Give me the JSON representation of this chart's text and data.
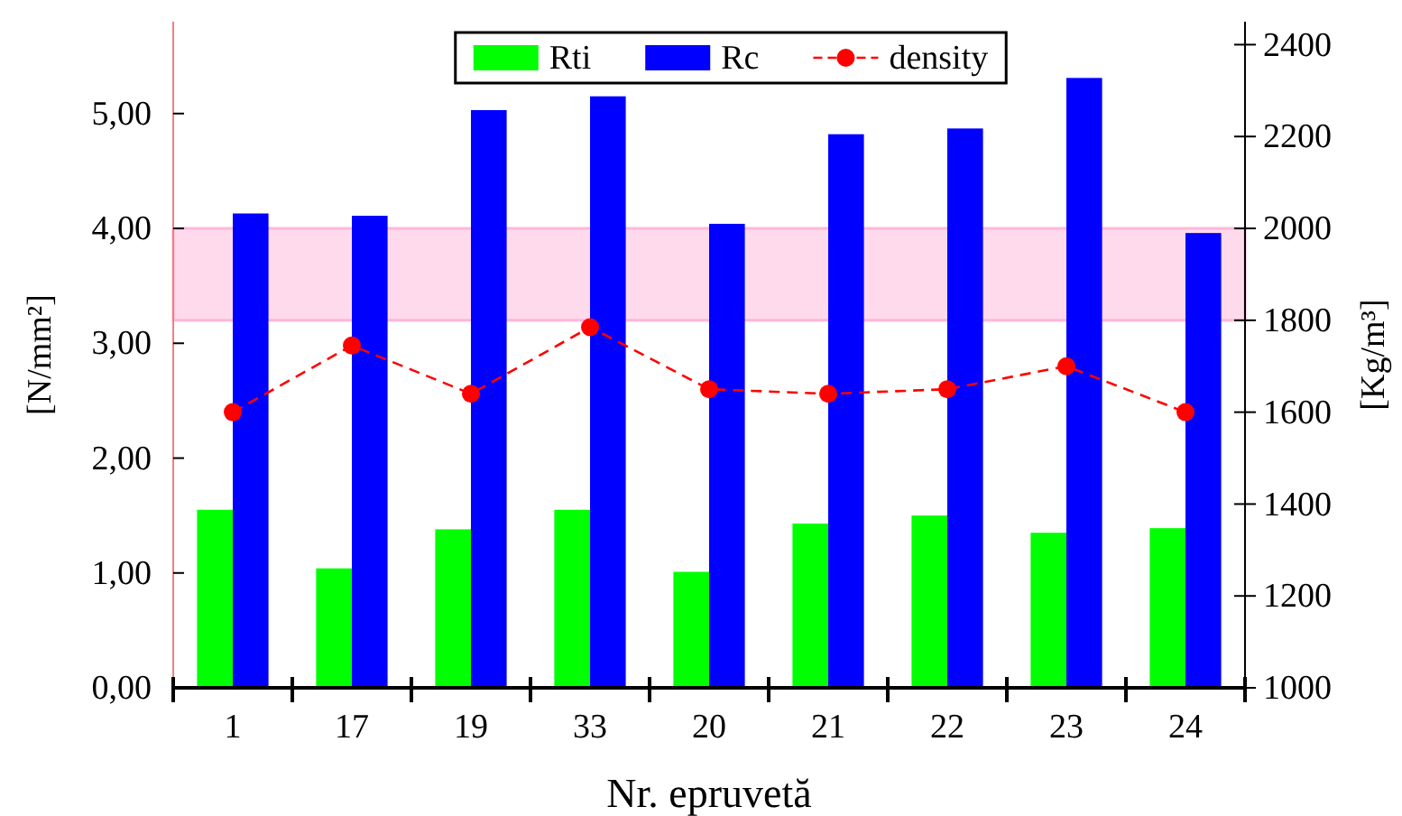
{
  "chart_data": {
    "type": "bar",
    "categories": [
      "1",
      "17",
      "19",
      "33",
      "20",
      "21",
      "22",
      "23",
      "24"
    ],
    "xlabel": "Nr. epruvetă",
    "ylabel": "[N/mm²]",
    "y2label": "[Kg/m³]",
    "series": [
      {
        "name": "Rti",
        "color": "#00ff00",
        "values": [
          1.55,
          1.04,
          1.38,
          1.55,
          1.01,
          1.43,
          1.5,
          1.35,
          1.39
        ]
      },
      {
        "name": "Rc",
        "color": "#0000ff",
        "values": [
          4.13,
          4.11,
          5.03,
          5.15,
          4.04,
          4.82,
          4.87,
          5.31,
          3.96
        ]
      },
      {
        "name": "density",
        "type": "line",
        "axis": "y2",
        "color": "#ff0000",
        "marker": "circle",
        "line_style": "dashed",
        "values": [
          1600,
          1745,
          1640,
          1785,
          1650,
          1640,
          1650,
          1700,
          1600
        ]
      }
    ],
    "ylim": [
      0,
      5.8
    ],
    "yticks": [
      {
        "value": 0,
        "label": "0,00"
      },
      {
        "value": 1,
        "label": "1,00"
      },
      {
        "value": 2,
        "label": "2,00"
      },
      {
        "value": 3,
        "label": "3,00"
      },
      {
        "value": 4,
        "label": "4,00"
      },
      {
        "value": 5,
        "label": "5,00"
      }
    ],
    "y2lim": [
      1000,
      2450
    ],
    "y2ticks": [
      1000,
      1200,
      1400,
      1600,
      1800,
      2000,
      2200,
      2400
    ],
    "bands": [
      {
        "axis": "y2",
        "from": 1800,
        "to": 2000,
        "color": "#ffb6d9"
      }
    ],
    "legend": "top"
  }
}
